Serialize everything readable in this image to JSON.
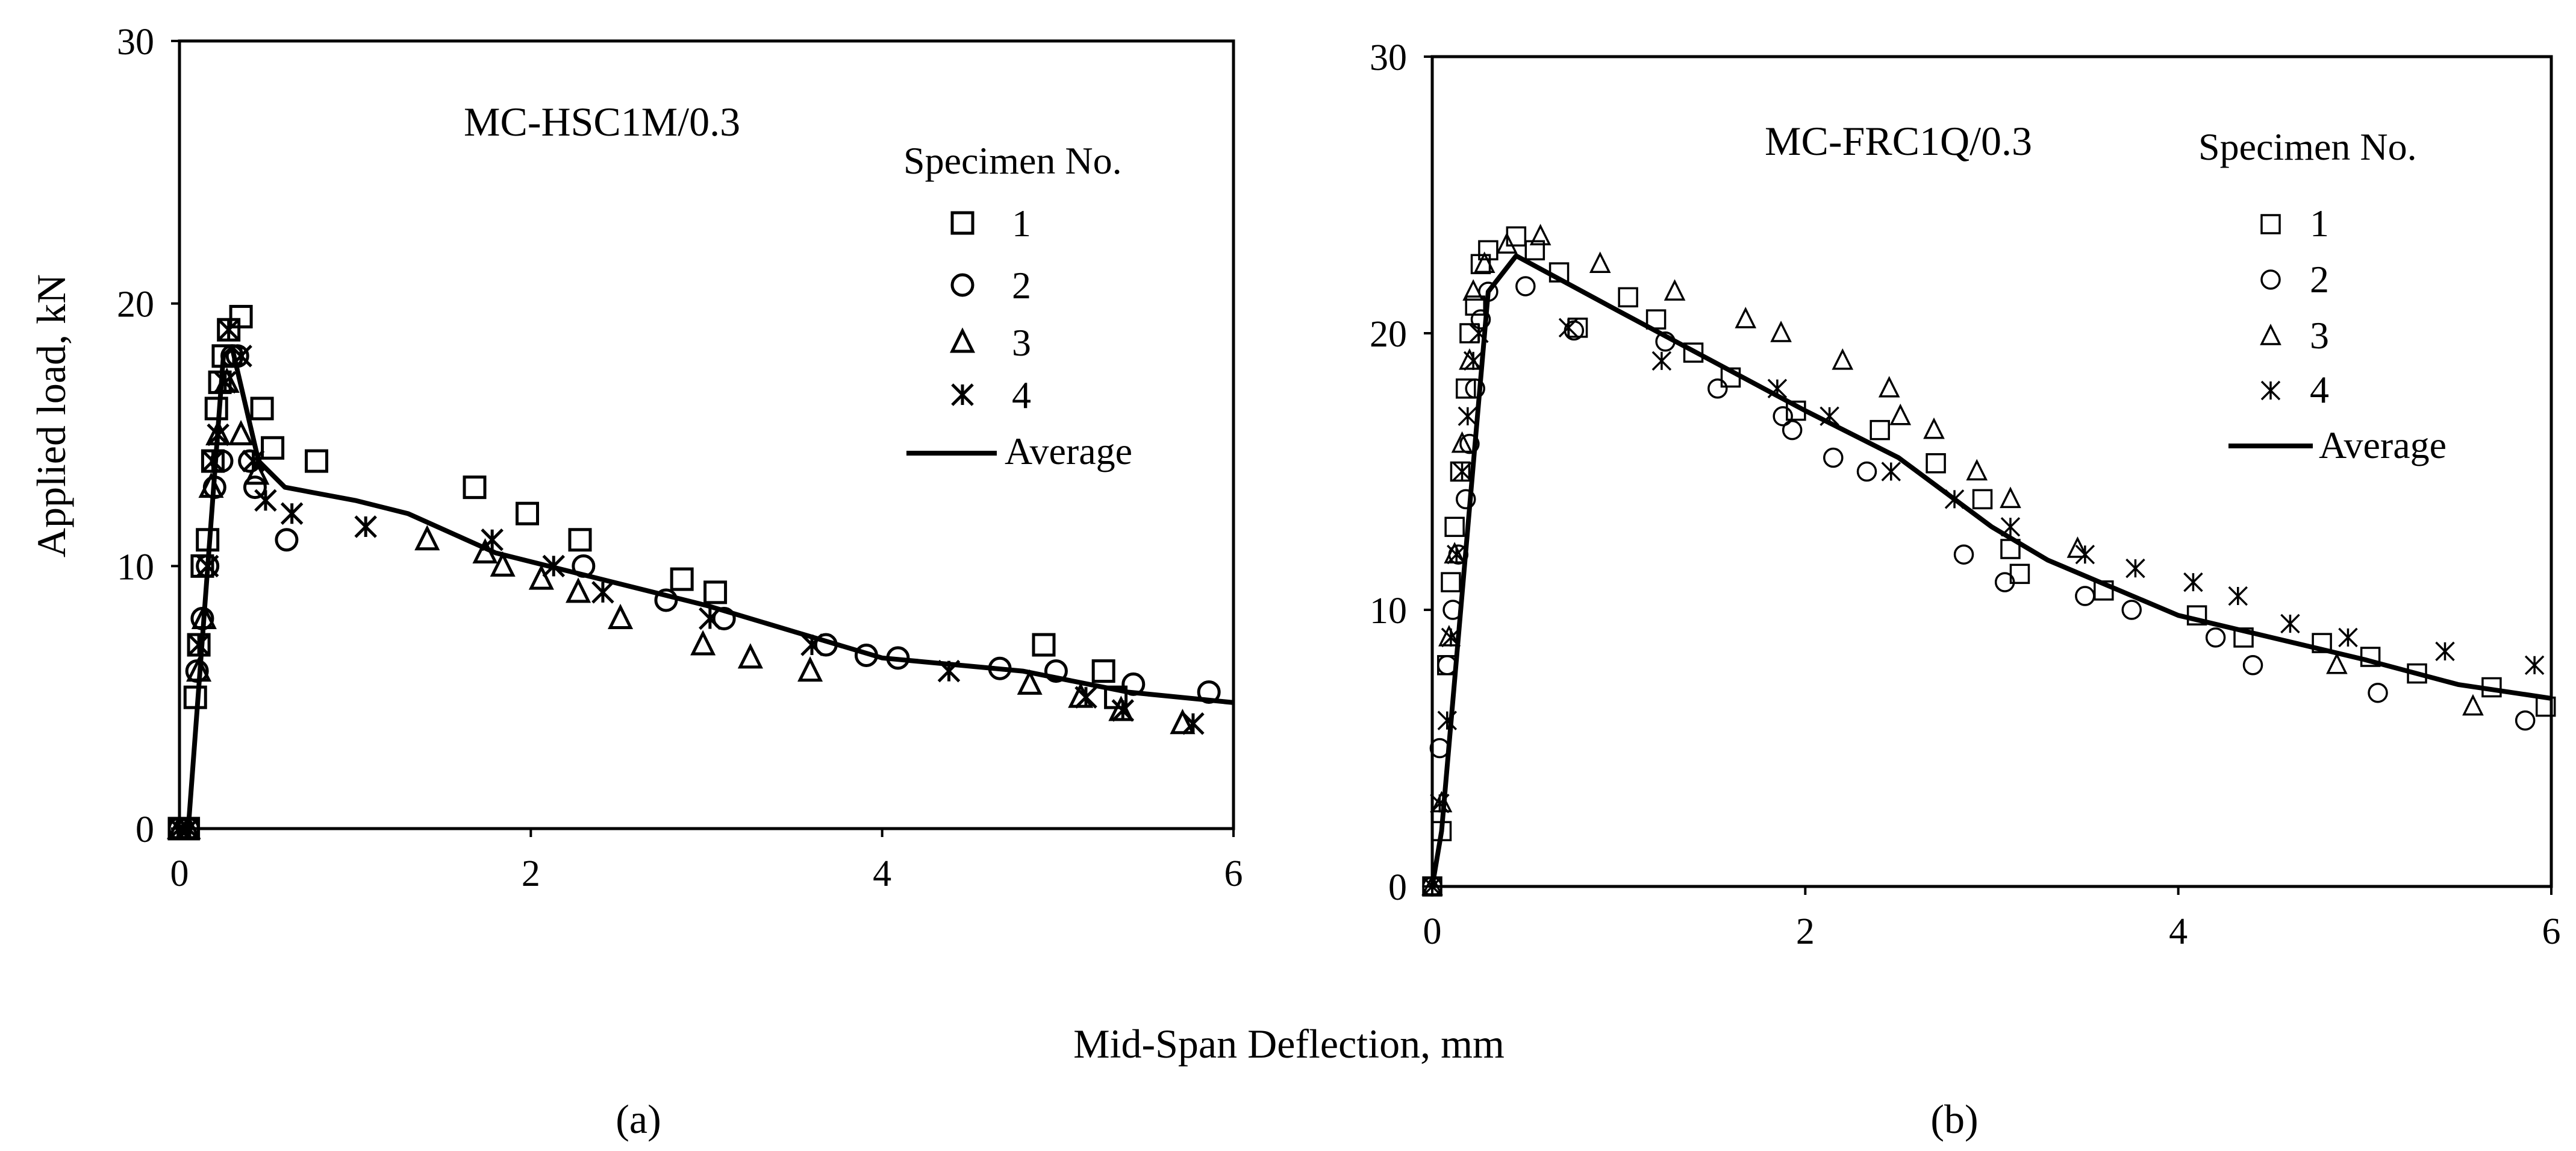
{
  "figure": {
    "y_label": "Applied load, kN",
    "x_label": "Mid-Span Deflection, mm",
    "panel_a_caption": "(a)",
    "panel_b_caption": "(b)"
  },
  "chart_data": [
    {
      "type": "scatter",
      "title": "MC-HSC1M/0.3",
      "xlabel": "Mid-Span Deflection, mm",
      "ylabel": "Applied load, kN",
      "xlim": [
        0,
        6
      ],
      "ylim": [
        0,
        30
      ],
      "xticks": [
        0,
        2,
        4,
        6
      ],
      "yticks": [
        0,
        10,
        20,
        30
      ],
      "legend_title": "Specimen No.",
      "legend_entries": [
        "1",
        "2",
        "3",
        "4",
        "Average"
      ],
      "series": [
        {
          "name": "1",
          "marker": "square",
          "points": [
            [
              0,
              0
            ],
            [
              0.05,
              0
            ],
            [
              0.09,
              5
            ],
            [
              0.11,
              7
            ],
            [
              0.13,
              10
            ],
            [
              0.16,
              11
            ],
            [
              0.19,
              14
            ],
            [
              0.21,
              16
            ],
            [
              0.23,
              17
            ],
            [
              0.25,
              18
            ],
            [
              0.28,
              19
            ],
            [
              0.35,
              19.5
            ],
            [
              0.47,
              16
            ],
            [
              0.53,
              14.5
            ],
            [
              0.78,
              14
            ],
            [
              1.68,
              13
            ],
            [
              1.98,
              12
            ],
            [
              2.28,
              11
            ],
            [
              2.86,
              9.5
            ],
            [
              3.05,
              9
            ],
            [
              4.92,
              7
            ],
            [
              5.26,
              6
            ],
            [
              5.33,
              5
            ]
          ]
        },
        {
          "name": "2",
          "marker": "circle",
          "points": [
            [
              0,
              0
            ],
            [
              0.05,
              0
            ],
            [
              0.1,
              6
            ],
            [
              0.13,
              8
            ],
            [
              0.16,
              10
            ],
            [
              0.2,
              13
            ],
            [
              0.24,
              14
            ],
            [
              0.3,
              18
            ],
            [
              0.33,
              18
            ],
            [
              0.4,
              14
            ],
            [
              0.43,
              13
            ],
            [
              0.61,
              11
            ],
            [
              2.3,
              10
            ],
            [
              2.77,
              8.7
            ],
            [
              3.1,
              8
            ],
            [
              3.68,
              7
            ],
            [
              3.91,
              6.6
            ],
            [
              4.09,
              6.5
            ],
            [
              4.67,
              6.1
            ],
            [
              4.99,
              6
            ],
            [
              5.43,
              5.5
            ],
            [
              5.86,
              5.2
            ]
          ]
        },
        {
          "name": "3",
          "marker": "triangle",
          "points": [
            [
              0,
              0
            ],
            [
              0.05,
              0
            ],
            [
              0.11,
              6
            ],
            [
              0.14,
              8
            ],
            [
              0.18,
              13
            ],
            [
              0.22,
              15
            ],
            [
              0.27,
              17
            ],
            [
              0.35,
              15
            ],
            [
              0.44,
              13.5
            ],
            [
              1.41,
              11
            ],
            [
              1.74,
              10.5
            ],
            [
              1.84,
              10
            ],
            [
              2.06,
              9.5
            ],
            [
              2.27,
              9
            ],
            [
              2.51,
              8
            ],
            [
              2.98,
              7
            ],
            [
              3.25,
              6.5
            ],
            [
              3.59,
              6
            ],
            [
              4.84,
              5.5
            ],
            [
              5.13,
              5
            ],
            [
              5.36,
              4.5
            ],
            [
              5.71,
              4
            ]
          ]
        },
        {
          "name": "4",
          "marker": "asterisk",
          "points": [
            [
              0,
              0
            ],
            [
              0.05,
              0
            ],
            [
              0.11,
              7
            ],
            [
              0.16,
              10
            ],
            [
              0.19,
              14
            ],
            [
              0.22,
              15
            ],
            [
              0.26,
              17
            ],
            [
              0.28,
              19
            ],
            [
              0.35,
              18
            ],
            [
              0.42,
              14
            ],
            [
              0.49,
              12.5
            ],
            [
              0.64,
              12
            ],
            [
              1.06,
              11.5
            ],
            [
              1.78,
              11
            ],
            [
              2.13,
              10
            ],
            [
              2.41,
              9
            ],
            [
              3.02,
              8
            ],
            [
              3.6,
              7
            ],
            [
              4.38,
              6
            ],
            [
              5.16,
              5
            ],
            [
              5.37,
              4.5
            ],
            [
              5.77,
              4
            ]
          ]
        },
        {
          "name": "Average",
          "marker": "line",
          "points": [
            [
              0,
              0
            ],
            [
              0.05,
              0
            ],
            [
              0.25,
              18
            ],
            [
              0.3,
              18.3
            ],
            [
              0.45,
              14
            ],
            [
              0.6,
              13
            ],
            [
              1.0,
              12.5
            ],
            [
              1.3,
              12
            ],
            [
              1.8,
              10.5
            ],
            [
              2.4,
              9.5
            ],
            [
              3.0,
              8.5
            ],
            [
              3.5,
              7.5
            ],
            [
              4.0,
              6.5
            ],
            [
              4.8,
              6
            ],
            [
              5.4,
              5.2
            ],
            [
              6.0,
              4.8
            ]
          ]
        }
      ]
    },
    {
      "type": "scatter",
      "title": "MC-FRC1Q/0.3",
      "xlabel": "Mid-Span Deflection, mm",
      "ylabel": "",
      "xlim": [
        0,
        6
      ],
      "ylim": [
        0,
        30
      ],
      "xticks": [
        0,
        2,
        4,
        6
      ],
      "yticks": [
        0,
        10,
        20,
        30
      ],
      "legend_title": "Specimen No.",
      "legend_entries": [
        "1",
        "2",
        "3",
        "4",
        "Average"
      ],
      "series": [
        {
          "name": "1",
          "marker": "square",
          "points": [
            [
              0,
              0
            ],
            [
              0.05,
              2
            ],
            [
              0.08,
              8
            ],
            [
              0.1,
              11
            ],
            [
              0.12,
              13
            ],
            [
              0.15,
              15
            ],
            [
              0.18,
              18
            ],
            [
              0.2,
              20
            ],
            [
              0.23,
              21
            ],
            [
              0.26,
              22.5
            ],
            [
              0.3,
              23
            ],
            [
              0.45,
              23.5
            ],
            [
              0.55,
              23
            ],
            [
              0.68,
              22.2
            ],
            [
              0.78,
              20.2
            ],
            [
              1.05,
              21.3
            ],
            [
              1.2,
              20.5
            ],
            [
              1.4,
              19.3
            ],
            [
              1.6,
              18.4
            ],
            [
              1.95,
              17.2
            ],
            [
              2.4,
              16.5
            ],
            [
              2.7,
              15.3
            ],
            [
              2.95,
              14
            ],
            [
              3.1,
              12.2
            ],
            [
              3.15,
              11.3
            ],
            [
              3.6,
              10.7
            ],
            [
              4.1,
              9.8
            ],
            [
              4.35,
              9
            ],
            [
              4.77,
              8.8
            ],
            [
              5.03,
              8.3
            ],
            [
              5.28,
              7.7
            ],
            [
              5.68,
              7.2
            ],
            [
              5.97,
              6.5
            ]
          ]
        },
        {
          "name": "2",
          "marker": "circle",
          "points": [
            [
              0,
              0
            ],
            [
              0.04,
              5
            ],
            [
              0.08,
              8
            ],
            [
              0.11,
              10
            ],
            [
              0.14,
              12
            ],
            [
              0.18,
              14
            ],
            [
              0.2,
              16
            ],
            [
              0.23,
              18
            ],
            [
              0.26,
              20.5
            ],
            [
              0.3,
              21.5
            ],
            [
              0.5,
              21.7
            ],
            [
              0.76,
              20.1
            ],
            [
              1.25,
              19.7
            ],
            [
              1.53,
              18
            ],
            [
              1.88,
              17
            ],
            [
              1.93,
              16.5
            ],
            [
              2.15,
              15.5
            ],
            [
              2.33,
              15
            ],
            [
              2.85,
              12
            ],
            [
              3.07,
              11
            ],
            [
              3.5,
              10.5
            ],
            [
              3.75,
              10
            ],
            [
              4.2,
              9
            ],
            [
              4.4,
              8
            ],
            [
              5.07,
              7
            ],
            [
              5.86,
              6
            ]
          ]
        },
        {
          "name": "3",
          "marker": "triangle",
          "points": [
            [
              0,
              0
            ],
            [
              0.05,
              3
            ],
            [
              0.09,
              9
            ],
            [
              0.12,
              12
            ],
            [
              0.16,
              16
            ],
            [
              0.2,
              19
            ],
            [
              0.22,
              21.5
            ],
            [
              0.28,
              22.5
            ],
            [
              0.4,
              23.2
            ],
            [
              0.58,
              23.5
            ],
            [
              0.9,
              22.5
            ],
            [
              1.3,
              21.5
            ],
            [
              1.68,
              20.5
            ],
            [
              1.87,
              20
            ],
            [
              2.2,
              19
            ],
            [
              2.45,
              18
            ],
            [
              2.51,
              17
            ],
            [
              2.69,
              16.5
            ],
            [
              2.92,
              15
            ],
            [
              3.1,
              14
            ],
            [
              3.46,
              12.2
            ],
            [
              4.85,
              8
            ],
            [
              5.58,
              6.5
            ]
          ]
        },
        {
          "name": "4",
          "marker": "asterisk",
          "points": [
            [
              0,
              0
            ],
            [
              0.04,
              3
            ],
            [
              0.08,
              6
            ],
            [
              0.1,
              9
            ],
            [
              0.13,
              12
            ],
            [
              0.16,
              15
            ],
            [
              0.19,
              17
            ],
            [
              0.22,
              19
            ],
            [
              0.25,
              20
            ],
            [
              0.73,
              20.2
            ],
            [
              1.23,
              19
            ],
            [
              1.85,
              18
            ],
            [
              2.13,
              17
            ],
            [
              2.46,
              15
            ],
            [
              2.8,
              14
            ],
            [
              3.1,
              13
            ],
            [
              3.5,
              12
            ],
            [
              3.77,
              11.5
            ],
            [
              4.08,
              11
            ],
            [
              4.32,
              10.5
            ],
            [
              4.6,
              9.5
            ],
            [
              4.91,
              9
            ],
            [
              5.43,
              8.5
            ],
            [
              5.91,
              8
            ]
          ]
        },
        {
          "name": "Average",
          "marker": "line",
          "points": [
            [
              0,
              0
            ],
            [
              0.05,
              2
            ],
            [
              0.3,
              21.5
            ],
            [
              0.45,
              22.8
            ],
            [
              1.0,
              20.8
            ],
            [
              1.5,
              19
            ],
            [
              2.0,
              17.2
            ],
            [
              2.5,
              15.5
            ],
            [
              3.0,
              13
            ],
            [
              3.3,
              11.8
            ],
            [
              4.0,
              9.8
            ],
            [
              4.5,
              9
            ],
            [
              5.0,
              8.2
            ],
            [
              5.5,
              7.3
            ],
            [
              6.0,
              6.8
            ]
          ]
        }
      ]
    }
  ]
}
